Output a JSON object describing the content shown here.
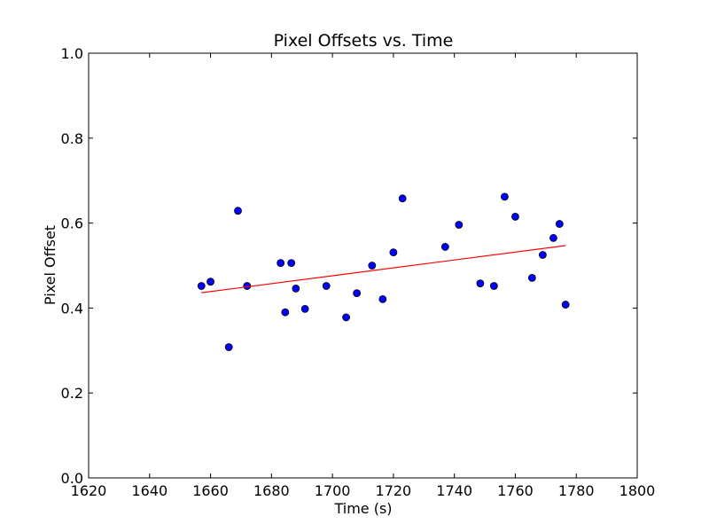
{
  "chart_data": {
    "type": "scatter",
    "title": "Pixel Offsets vs. Time",
    "xlabel": "Time (s)",
    "ylabel": "Pixel Offset",
    "xlim": [
      1620,
      1800
    ],
    "ylim": [
      0.0,
      1.0
    ],
    "xticks": [
      "1620",
      "1640",
      "1660",
      "1680",
      "1700",
      "1720",
      "1740",
      "1760",
      "1780",
      "1800"
    ],
    "yticks": [
      "0.0",
      "0.2",
      "0.4",
      "0.6",
      "0.8",
      "1.0"
    ],
    "grid": false,
    "series": [
      {
        "kind": "points",
        "color": "#0000ff",
        "points": [
          [
            1657,
            0.452
          ],
          [
            1660,
            0.462
          ],
          [
            1666,
            0.308
          ],
          [
            1669,
            0.629
          ],
          [
            1672,
            0.452
          ],
          [
            1683,
            0.506
          ],
          [
            1684.5,
            0.39
          ],
          [
            1686.5,
            0.506
          ],
          [
            1688,
            0.446
          ],
          [
            1691,
            0.398
          ],
          [
            1698,
            0.452
          ],
          [
            1704.5,
            0.378
          ],
          [
            1708,
            0.435
          ],
          [
            1713,
            0.5
          ],
          [
            1716.5,
            0.421
          ],
          [
            1720,
            0.531
          ],
          [
            1723,
            0.658
          ],
          [
            1737,
            0.544
          ],
          [
            1741.5,
            0.596
          ],
          [
            1748.5,
            0.458
          ],
          [
            1753,
            0.452
          ],
          [
            1756.5,
            0.662
          ],
          [
            1760,
            0.615
          ],
          [
            1765.5,
            0.471
          ],
          [
            1769,
            0.525
          ],
          [
            1772.5,
            0.565
          ],
          [
            1774.5,
            0.598
          ],
          [
            1776.5,
            0.408
          ]
        ]
      },
      {
        "kind": "fit-line",
        "color": "#ff0000",
        "points": [
          [
            1657,
            0.436
          ],
          [
            1776.5,
            0.547
          ]
        ]
      }
    ]
  }
}
